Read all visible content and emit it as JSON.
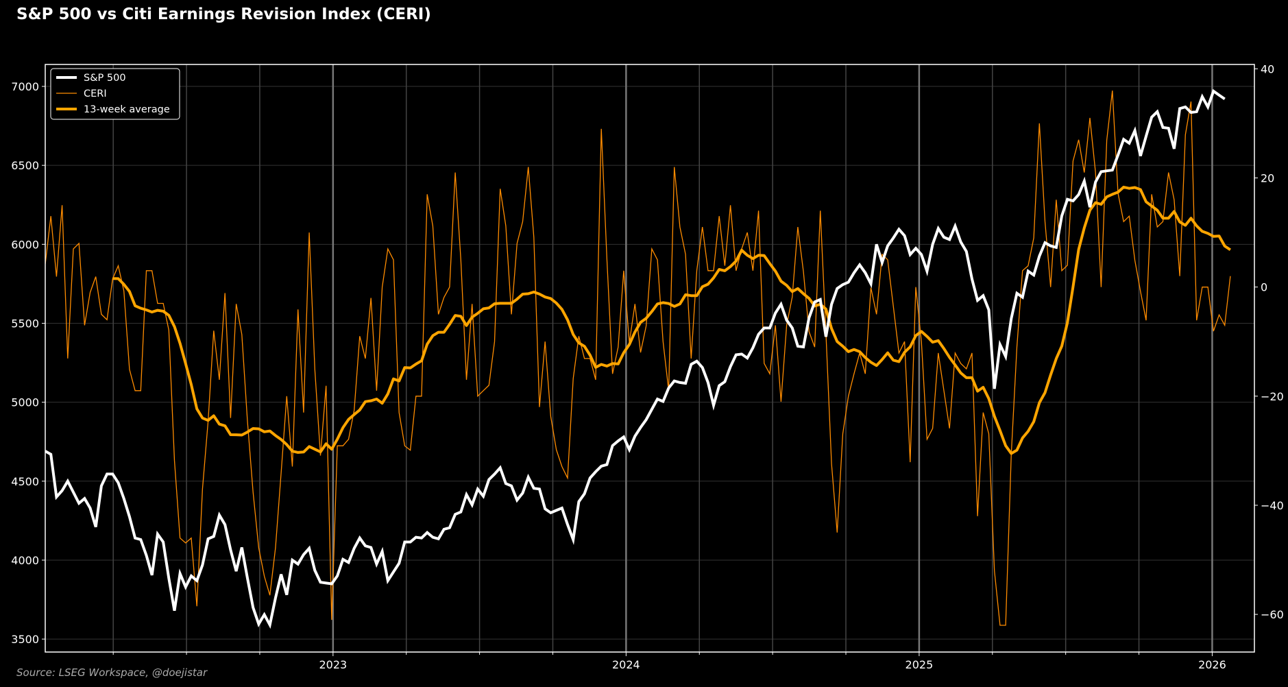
{
  "chart_data": {
    "type": "line",
    "title": "S&P 500 vs Citi Earnings Revision Index (CERI)",
    "source": "Source:  LSEG Workspace, @doejistar",
    "xlabel": "",
    "frequency": "weekly",
    "start_date_decimal_year": 2022.018,
    "xlim": [
      2022.018,
      2026.144
    ],
    "x_ticks": [
      "2023",
      "2024",
      "2025",
      "2026"
    ],
    "x_tick_values": [
      2023,
      2024,
      2025,
      2026
    ],
    "left_axis": {
      "label": "",
      "ylim": [
        3418,
        7139
      ],
      "ticks": [
        "3500",
        "4000",
        "4500",
        "5000",
        "5500",
        "6000",
        "6500",
        "7000"
      ],
      "tick_values": [
        3500,
        4000,
        4500,
        5000,
        5500,
        6000,
        6500,
        7000
      ]
    },
    "right_axis": {
      "label": "",
      "ylim": [
        -66.9,
        40.8
      ],
      "ticks": [
        "−60",
        "−40",
        "−20",
        "0",
        "20",
        "40"
      ],
      "tick_values": [
        -60,
        -40,
        -20,
        0,
        20,
        40
      ]
    },
    "grid": true,
    "legend_position": "top-left",
    "legend": [
      "S&P 500",
      "CERI",
      "13-week average"
    ],
    "colors": {
      "sp500": "#ffffff",
      "ceri": "#ff8c00",
      "avg": "#ffa500"
    },
    "series": [
      {
        "name": "S&P 500",
        "axis": "left",
        "values": [
          4690,
          4670,
          4400,
          4440,
          4500,
          4430,
          4360,
          4390,
          4330,
          4210,
          4470,
          4545,
          4545,
          4490,
          4390,
          4275,
          4140,
          4130,
          4030,
          3905,
          4165,
          4115,
          3885,
          3680,
          3915,
          3830,
          3900,
          3870,
          3970,
          4135,
          4150,
          4285,
          4225,
          4065,
          3930,
          4080,
          3885,
          3700,
          3595,
          3655,
          3590,
          3760,
          3910,
          3780,
          4000,
          3975,
          4035,
          4075,
          3935,
          3860,
          3855,
          3850,
          3900,
          4005,
          3985,
          4075,
          4140,
          4090,
          4080,
          3975,
          4055,
          3870,
          3925,
          3980,
          4115,
          4115,
          4145,
          4140,
          4175,
          4145,
          4135,
          4195,
          4205,
          4290,
          4305,
          4415,
          4350,
          4450,
          4405,
          4510,
          4545,
          4585,
          4485,
          4470,
          4380,
          4425,
          4525,
          4455,
          4450,
          4325,
          4300,
          4315,
          4330,
          4225,
          4130,
          4370,
          4420,
          4520,
          4560,
          4595,
          4605,
          4725,
          4755,
          4780,
          4700,
          4785,
          4840,
          4890,
          4955,
          5020,
          5005,
          5090,
          5135,
          5125,
          5120,
          5240,
          5260,
          5220,
          5125,
          4980,
          5105,
          5130,
          5225,
          5300,
          5305,
          5280,
          5345,
          5430,
          5470,
          5470,
          5565,
          5620,
          5520,
          5470,
          5355,
          5350,
          5535,
          5635,
          5650,
          5415,
          5620,
          5720,
          5745,
          5760,
          5820,
          5870,
          5820,
          5750,
          6000,
          5885,
          5990,
          6040,
          6095,
          6055,
          5935,
          5975,
          5935,
          5830,
          6000,
          6100,
          6045,
          6030,
          6115,
          6015,
          5955,
          5780,
          5645,
          5675,
          5585,
          5085,
          5365,
          5290,
          5530,
          5690,
          5665,
          5830,
          5805,
          5925,
          6010,
          5990,
          5980,
          6180,
          6285,
          6275,
          6315,
          6400,
          6235,
          6395,
          6460,
          6465,
          6470,
          6565,
          6665,
          6640,
          6720,
          6560,
          6685,
          6805,
          6840,
          6740,
          6735,
          6605,
          6860,
          6870,
          6835,
          6840,
          6935,
          6870,
          6970,
          6945,
          6920
        ]
      },
      {
        "name": "CERI",
        "axis": "right",
        "values": [
          4.2,
          13.0,
          1.9,
          15.0,
          -13.1,
          7.0,
          8.0,
          -7.0,
          -1.0,
          1.9,
          -5.0,
          -6.0,
          1.5,
          3.9,
          -0.7,
          -15.1,
          -19.0,
          -19.0,
          3.0,
          3.0,
          -3.0,
          -3.0,
          -7.9,
          -31.8,
          -46.0,
          -46.9,
          -46.0,
          -58.5,
          -37.0,
          -24.6,
          -8.0,
          -17.0,
          -1.1,
          -24.0,
          -3.1,
          -8.7,
          -24.6,
          -37.6,
          -47.8,
          -53.0,
          -56.5,
          -47.8,
          -34.1,
          -20.0,
          -32.9,
          -4.1,
          -23.0,
          10.0,
          -15.1,
          -30.9,
          -18.1,
          -61.0,
          -29.1,
          -29.1,
          -27.9,
          -22.6,
          -9.0,
          -13.1,
          -2.0,
          -19.0,
          0.0,
          7.0,
          5.0,
          -23.0,
          -29.1,
          -29.9,
          -20.0,
          -20.0,
          17.0,
          11.2,
          -5.0,
          -1.9,
          0.0,
          21.0,
          5.0,
          -17.0,
          -3.1,
          -20.0,
          -19.0,
          -18.0,
          -10.0,
          18.0,
          11.2,
          -5.0,
          8.0,
          12.0,
          22.0,
          9.1,
          -22.0,
          -10.0,
          -23.7,
          -29.8,
          -32.9,
          -35.0,
          -16.8,
          -9.0,
          -13.1,
          -13.1,
          -17.0,
          29.0,
          5.1,
          -15.9,
          -11.0,
          3.0,
          -10.2,
          -3.1,
          -12.0,
          -7.1,
          7.0,
          5.0,
          -10.0,
          -19.0,
          22.0,
          11.0,
          6.0,
          -13.1,
          3.0,
          11.0,
          3.0,
          3.0,
          13.0,
          3.9,
          15.0,
          3.0,
          7.0,
          10.0,
          3.0,
          14.0,
          -14.0,
          -15.9,
          -7.0,
          -21.0,
          -7.0,
          -1.8,
          11.0,
          2.8,
          -8.2,
          -11.0,
          14.0,
          -8.4,
          -32.4,
          -45.0,
          -26.9,
          -20.0,
          -15.9,
          -12.1,
          -15.9,
          -0.1,
          -5.0,
          6.0,
          5.0,
          -3.5,
          -12.1,
          -10.0,
          -32.1,
          0.0,
          -10.0,
          -27.9,
          -25.9,
          -12.1,
          -19.0,
          -25.9,
          -12.1,
          -14.0,
          -15.0,
          -12.1,
          -42.0,
          -23.0,
          -26.9,
          -52.0,
          -62.0,
          -62.0,
          -30.6,
          -11.0,
          3.0,
          3.9,
          9.0,
          30.0,
          12.0,
          0.0,
          16.0,
          3.0,
          4.0,
          23.1,
          27.0,
          21.0,
          31.0,
          21.0,
          0.0,
          26.9,
          36.0,
          17.2,
          12.0,
          13.0,
          4.9,
          -0.8,
          -6.1,
          17.0,
          11.0,
          12.0,
          21.0,
          16.0,
          2.0,
          27.9,
          34.0,
          -6.1,
          0.0,
          0.0,
          -8.1,
          -5.1,
          -7.0,
          2.0
        ]
      },
      {
        "name": "13-week average",
        "axis": "right",
        "derived_from": "CERI",
        "moving_average_window": 13
      }
    ]
  }
}
